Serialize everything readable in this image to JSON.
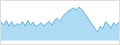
{
  "chart_data": {
    "type": "area",
    "values": [
      55,
      45,
      58,
      42,
      55,
      40,
      50,
      44,
      56,
      42,
      58,
      45,
      54,
      40,
      46,
      52,
      42,
      50,
      56,
      44,
      60,
      65,
      55,
      70,
      78,
      85,
      90,
      95,
      88,
      97,
      92,
      82,
      70,
      58,
      45,
      35,
      25,
      42,
      35,
      55,
      48,
      35,
      52,
      44,
      55
    ],
    "color": "#5bb8e8",
    "xlim": [
      0,
      44
    ],
    "ylim": [
      -10,
      115
    ],
    "grid": false,
    "tick_labels": false
  }
}
